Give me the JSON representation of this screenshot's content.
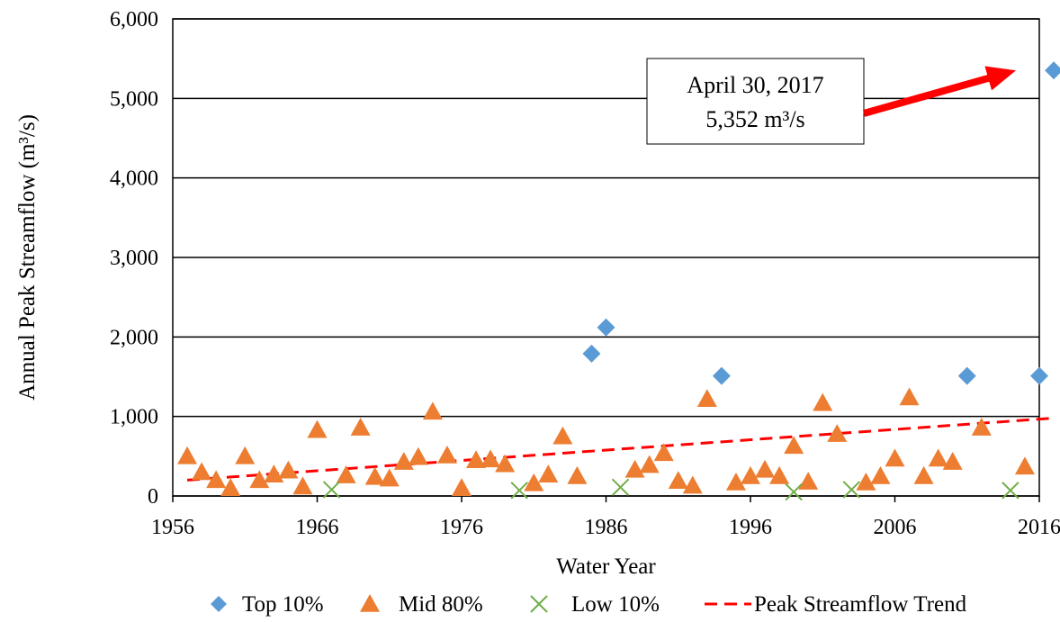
{
  "chart_data": {
    "type": "scatter",
    "xlabel": "Water Year",
    "ylabel": "Annual Peak Streamflow (m³/s)",
    "xlim": [
      1956,
      2016
    ],
    "ylim": [
      0,
      6000
    ],
    "x_ticks": [
      "1956",
      "1966",
      "1976",
      "1986",
      "1996",
      "2006",
      "2016"
    ],
    "y_ticks": [
      "0",
      "1,000",
      "2,000",
      "3,000",
      "4,000",
      "5,000",
      "6,000"
    ],
    "grid": "horizontal",
    "legend_position": "bottom",
    "series": [
      {
        "name": "Top 10%",
        "marker": "diamond",
        "color": "#5b9bd5",
        "points": [
          [
            1985,
            1790
          ],
          [
            1986,
            2120
          ],
          [
            1994,
            1510
          ],
          [
            2011,
            1510
          ],
          [
            2016,
            1510
          ],
          [
            2017,
            5352
          ]
        ]
      },
      {
        "name": "Mid 80%",
        "marker": "triangle",
        "color": "#ed7d31",
        "points": [
          [
            1957,
            500
          ],
          [
            1958,
            300
          ],
          [
            1959,
            200
          ],
          [
            1960,
            100
          ],
          [
            1961,
            500
          ],
          [
            1962,
            200
          ],
          [
            1963,
            270
          ],
          [
            1964,
            320
          ],
          [
            1965,
            120
          ],
          [
            1966,
            830
          ],
          [
            1968,
            260
          ],
          [
            1969,
            860
          ],
          [
            1970,
            240
          ],
          [
            1971,
            220
          ],
          [
            1972,
            430
          ],
          [
            1973,
            490
          ],
          [
            1974,
            1060
          ],
          [
            1975,
            510
          ],
          [
            1976,
            100
          ],
          [
            1977,
            450
          ],
          [
            1978,
            460
          ],
          [
            1979,
            400
          ],
          [
            1981,
            160
          ],
          [
            1982,
            270
          ],
          [
            1983,
            750
          ],
          [
            1984,
            250
          ],
          [
            1988,
            330
          ],
          [
            1989,
            390
          ],
          [
            1990,
            540
          ],
          [
            1991,
            190
          ],
          [
            1992,
            130
          ],
          [
            1993,
            1220
          ],
          [
            1995,
            170
          ],
          [
            1996,
            250
          ],
          [
            1997,
            330
          ],
          [
            1998,
            250
          ],
          [
            1999,
            630
          ],
          [
            2000,
            180
          ],
          [
            2001,
            1170
          ],
          [
            2002,
            780
          ],
          [
            2004,
            170
          ],
          [
            2005,
            250
          ],
          [
            2006,
            470
          ],
          [
            2007,
            1240
          ],
          [
            2008,
            250
          ],
          [
            2009,
            470
          ],
          [
            2010,
            430
          ],
          [
            2012,
            860
          ],
          [
            2015,
            370
          ]
        ]
      },
      {
        "name": "Low 10%",
        "marker": "x",
        "color": "#70ad47",
        "points": [
          [
            1967,
            80
          ],
          [
            1980,
            70
          ],
          [
            1987,
            110
          ],
          [
            1999,
            50
          ],
          [
            2003,
            80
          ],
          [
            2014,
            70
          ]
        ]
      }
    ],
    "trend": {
      "name": "Peak Streamflow Trend",
      "color": "#ff0000",
      "style": "dashed",
      "x": [
        1957,
        2017
      ],
      "y": [
        200,
        980
      ]
    },
    "annotation": {
      "line1": "April 30, 2017",
      "line2": "5,352 m³/s",
      "arrow_color": "#ff0000",
      "points_to": [
        2017,
        5352
      ]
    }
  }
}
